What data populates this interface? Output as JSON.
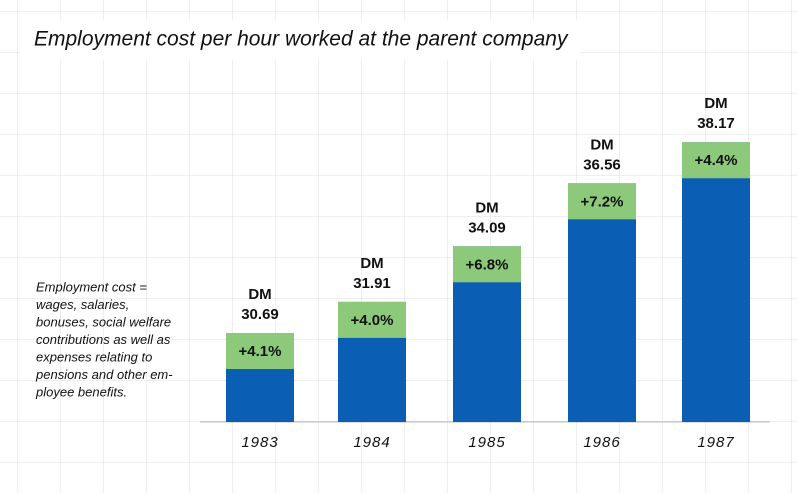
{
  "chart_data": {
    "type": "bar",
    "title": "Employment cost per hour worked at the parent company",
    "note": [
      "Employment cost =",
      "wages, salaries,",
      "bonuses, social welfare",
      "contributions as well as",
      "expenses relating to",
      "pensions and other em-",
      "ployee benefits."
    ],
    "categories": [
      "1983",
      "1984",
      "1985",
      "1986",
      "1987"
    ],
    "values": [
      30.69,
      31.91,
      34.09,
      36.56,
      38.17
    ],
    "value_prefix": "DM",
    "changes": [
      "+4.1%",
      "+4.0%",
      "+6.8%",
      "+7.2%",
      "+4.4%"
    ],
    "color": "#0a5fb4",
    "change_color": "#8dc97a",
    "ylim": [
      27.2,
      39.2
    ]
  }
}
